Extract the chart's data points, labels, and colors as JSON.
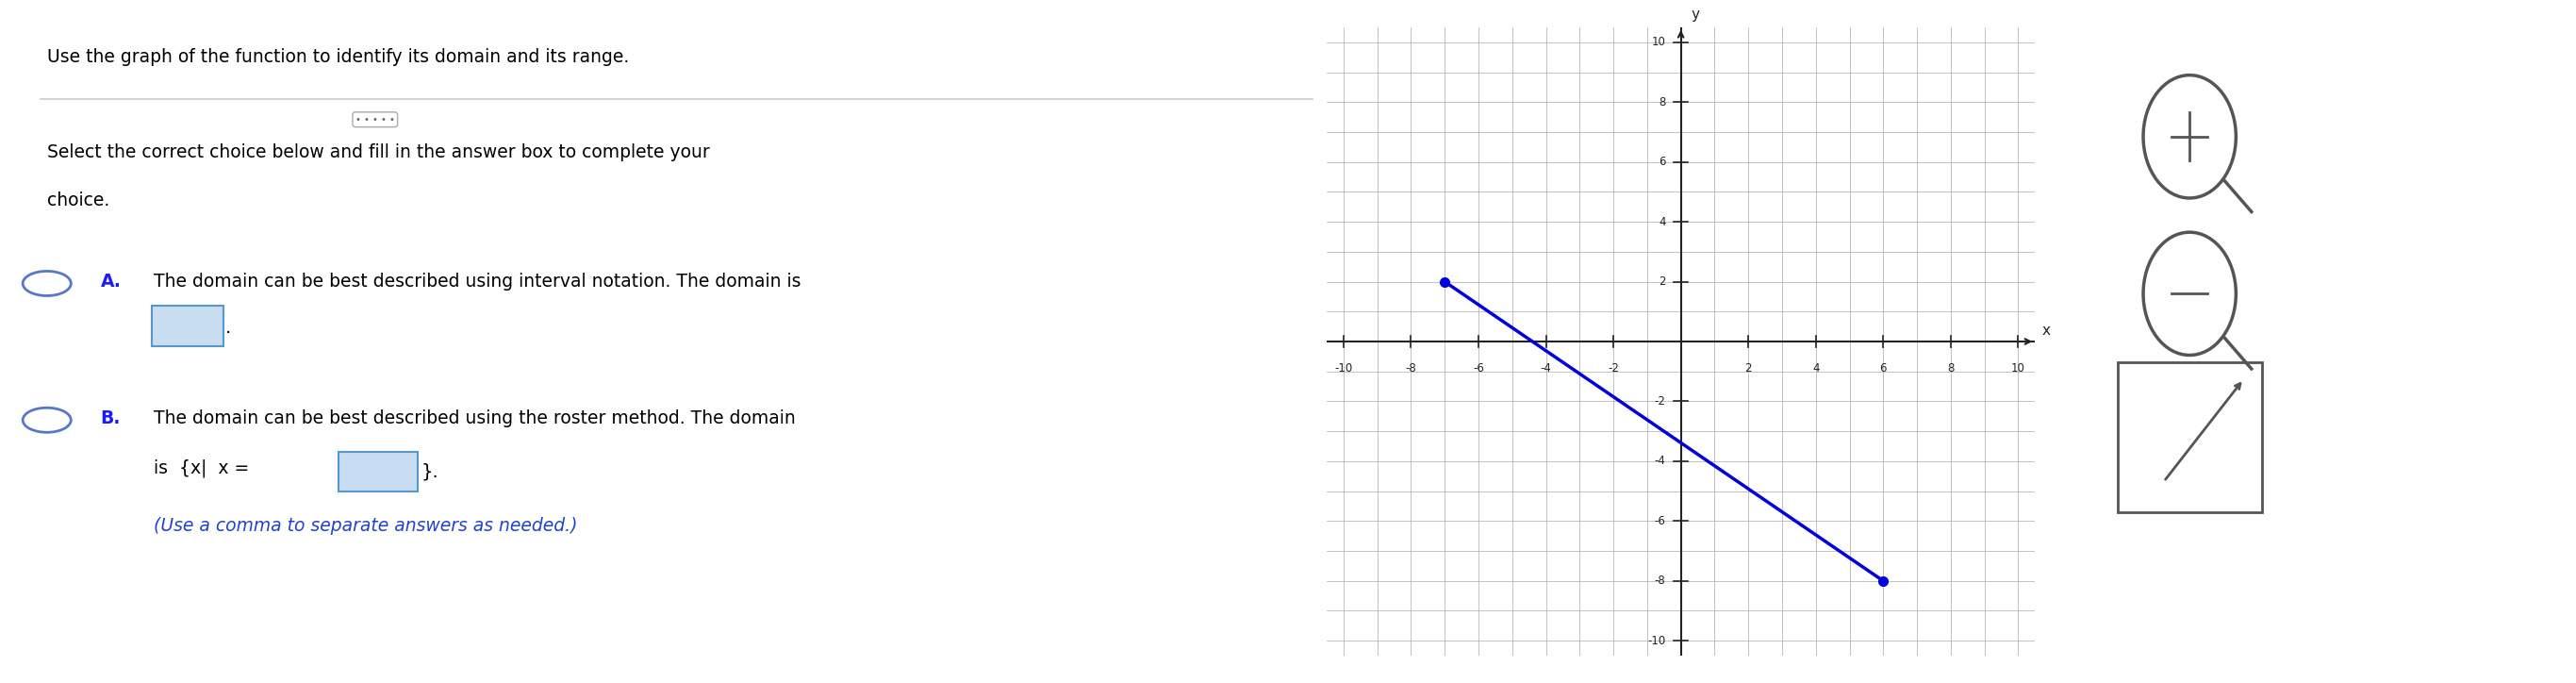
{
  "title": "Use the graph of the function to identify its domain and its range.",
  "subtitle_line1": "Select the correct choice below and fill in the answer box to complete your",
  "subtitle_line2": "choice.",
  "option_A_bold": "A.",
  "option_A_text": "The domain can be best described using interval notation. The domain is",
  "option_B_bold": "B.",
  "option_B_text1": "The domain can be best described using the roster method. The domain",
  "option_B_text2": "is  {x|  x =",
  "option_B_hint": "(Use a comma to separate answers as needed.)",
  "line_x1": -7,
  "line_y1": 2,
  "line_x2": 6,
  "line_y2": -8,
  "line_color": "#0000dd",
  "dot_color": "#0000dd",
  "grid_color": "#aaaaaa",
  "axis_color": "#222222",
  "text_color": "#000000",
  "blue_text_color": "#2244cc",
  "bold_color": "#1a1aff",
  "xlim": [
    -10.5,
    10.5
  ],
  "ylim": [
    -10.5,
    10.5
  ],
  "xticks": [
    -10,
    -8,
    -6,
    -4,
    -2,
    2,
    4,
    6,
    8,
    10
  ],
  "yticks": [
    -10,
    -8,
    -6,
    -4,
    -2,
    2,
    4,
    6,
    8,
    10
  ],
  "background_color": "#ffffff",
  "divider_color": "#cccccc",
  "input_box_color": "#c8ddf0",
  "input_box_border": "#5599cc"
}
